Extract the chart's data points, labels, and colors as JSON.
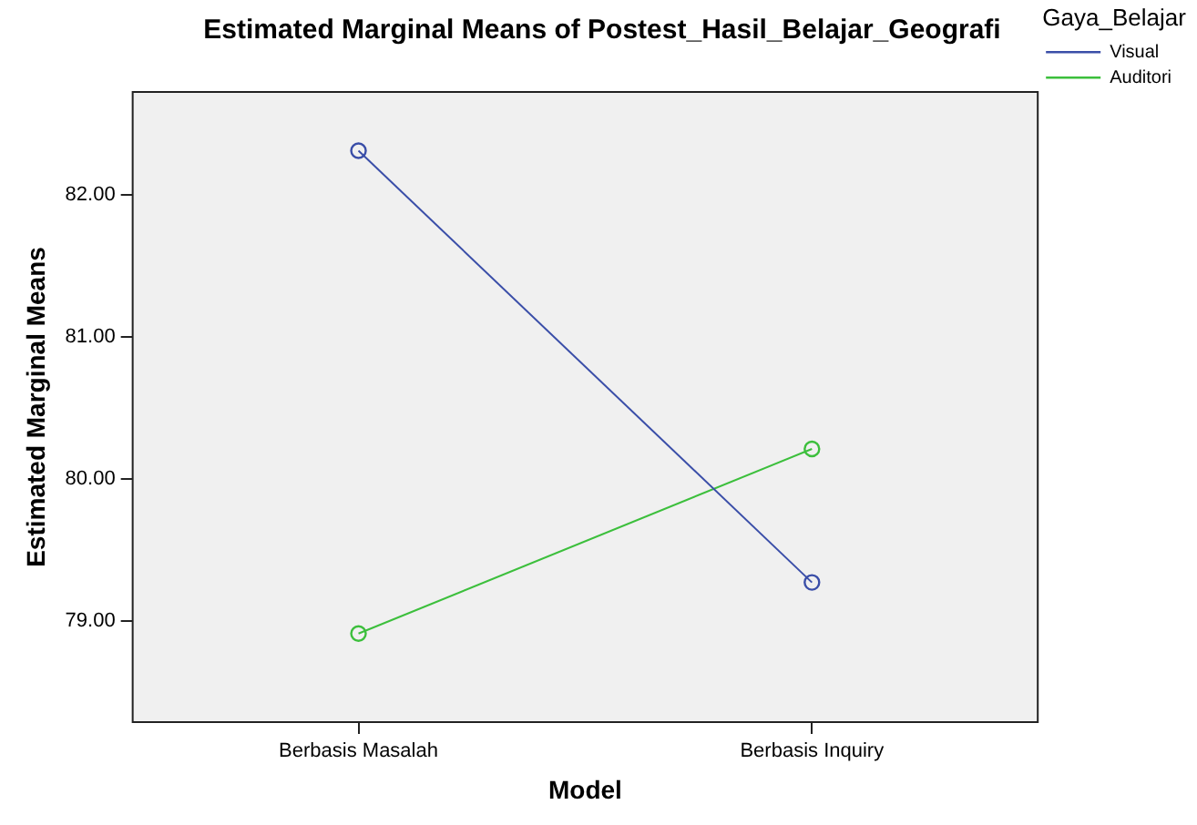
{
  "chart_data": {
    "type": "line",
    "title": "Estimated Marginal Means of Postest_Hasil_Belajar_Geografi",
    "xlabel": "Model",
    "ylabel": "Estimated Marginal Means",
    "legend_title": "Gaya_Belajar",
    "categories": [
      "Berbasis Masalah",
      "Berbasis Inquiry"
    ],
    "series": [
      {
        "name": "Visual",
        "color": "#3a4ea8",
        "values": [
          82.31,
          79.27
        ]
      },
      {
        "name": "Auditori",
        "color": "#3cbf3c",
        "values": [
          78.91,
          80.21
        ]
      }
    ],
    "ylim": [
      78.28,
      82.73
    ],
    "yticks": [
      {
        "value": 79,
        "label": "79.00"
      },
      {
        "value": 80,
        "label": "80.00"
      },
      {
        "value": 81,
        "label": "81.00"
      },
      {
        "value": 82,
        "label": "82.00"
      }
    ],
    "grid": false,
    "legend": "top right",
    "marker": "circle",
    "line_style": "solid"
  }
}
